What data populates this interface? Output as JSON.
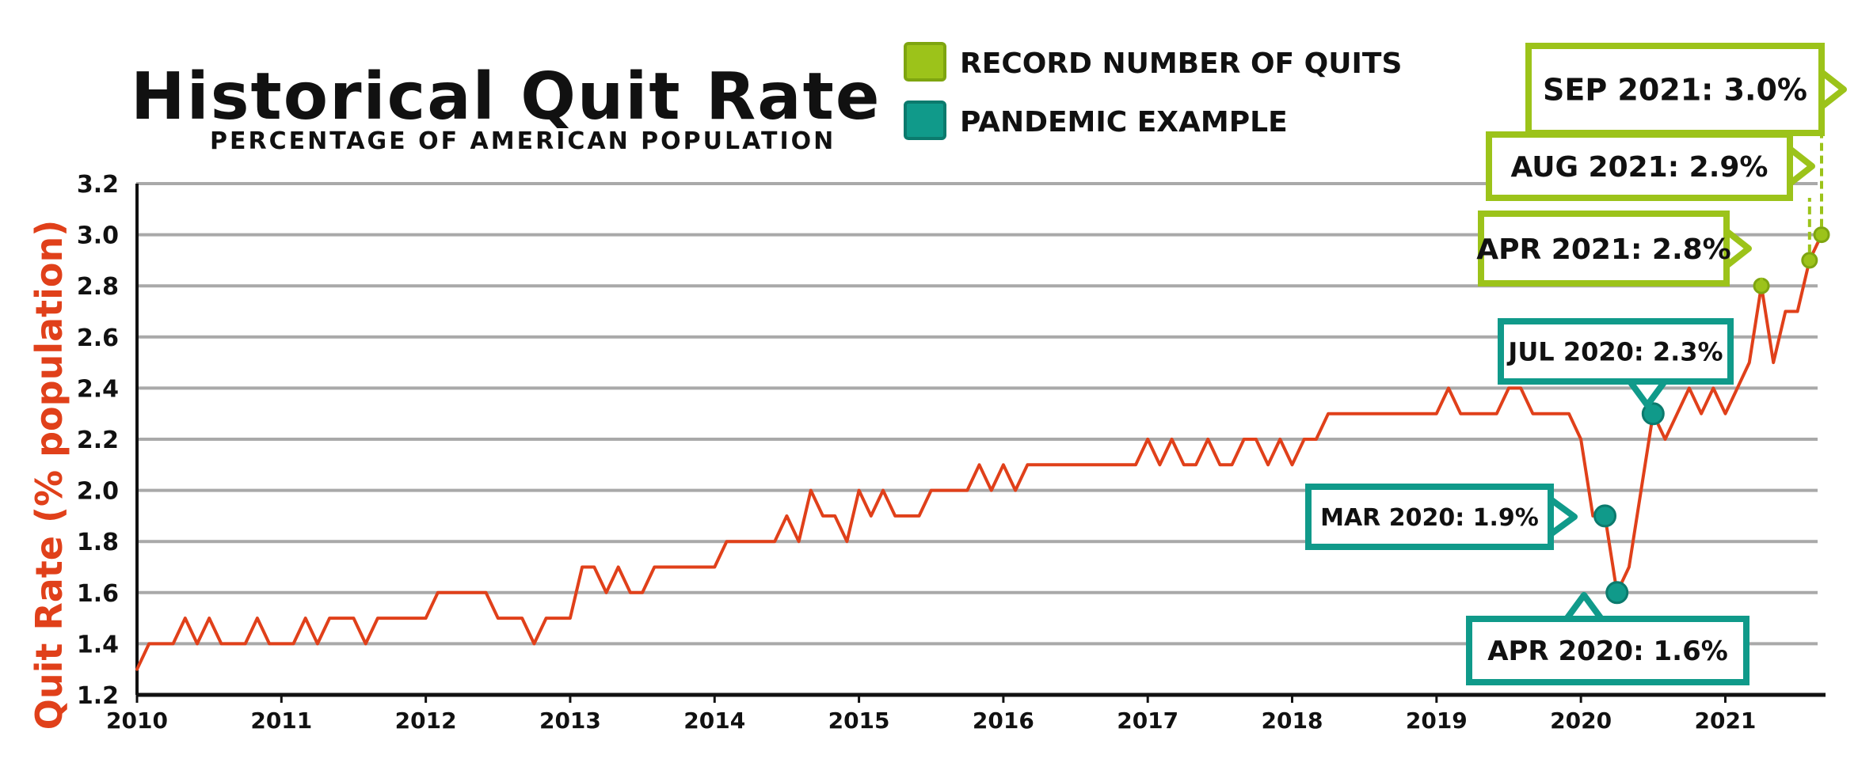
{
  "chart_data": {
    "type": "line",
    "title": "Historical Quit Rate",
    "subtitle": "percentage of American population",
    "ylabel": "Quit Rate (% population)",
    "xlabel": "",
    "ylim": [
      1.2,
      3.2
    ],
    "xlim": [
      "2010-01",
      "2021-09"
    ],
    "yticks": [
      "1.2",
      "1.4",
      "1.6",
      "1.8",
      "2.0",
      "2.2",
      "2.4",
      "2.6",
      "2.8",
      "3.0",
      "3.2"
    ],
    "xticks": [
      "2010",
      "2011",
      "2012",
      "2013",
      "2014",
      "2015",
      "2016",
      "2017",
      "2018",
      "2019",
      "2020",
      "2021"
    ],
    "grid": true,
    "legend_position": "top",
    "legend": [
      {
        "label": "RECORD NUMBER OF QUITS",
        "color": "#9cc31a"
      },
      {
        "label": "PANDEMIC EXAMPLE",
        "color": "#109a8a"
      }
    ],
    "series": [
      {
        "color": "#e0401a",
        "points": [
          [
            "2010-01",
            1.3
          ],
          [
            "2010-02",
            1.4
          ],
          [
            "2010-04",
            1.4
          ],
          [
            "2010-05",
            1.5
          ],
          [
            "2010-06",
            1.4
          ],
          [
            "2010-07",
            1.5
          ],
          [
            "2010-08",
            1.4
          ],
          [
            "2010-10",
            1.4
          ],
          [
            "2010-11",
            1.5
          ],
          [
            "2010-12",
            1.4
          ],
          [
            "2011-02",
            1.4
          ],
          [
            "2011-03",
            1.5
          ],
          [
            "2011-04",
            1.4
          ],
          [
            "2011-05",
            1.5
          ],
          [
            "2011-07",
            1.5
          ],
          [
            "2011-08",
            1.4
          ],
          [
            "2011-09",
            1.5
          ],
          [
            "2012-01",
            1.5
          ],
          [
            "2012-02",
            1.6
          ],
          [
            "2012-06",
            1.6
          ],
          [
            "2012-07",
            1.5
          ],
          [
            "2012-08",
            1.5
          ],
          [
            "2012-09",
            1.5
          ],
          [
            "2012-10",
            1.4
          ],
          [
            "2012-11",
            1.5
          ],
          [
            "2013-01",
            1.5
          ],
          [
            "2013-02",
            1.7
          ],
          [
            "2013-03",
            1.7
          ],
          [
            "2013-04",
            1.6
          ],
          [
            "2013-05",
            1.7
          ],
          [
            "2013-06",
            1.6
          ],
          [
            "2013-07",
            1.6
          ],
          [
            "2013-08",
            1.7
          ],
          [
            "2013-12",
            1.7
          ],
          [
            "2014-01",
            1.7
          ],
          [
            "2014-02",
            1.8
          ],
          [
            "2014-06",
            1.8
          ],
          [
            "2014-07",
            1.9
          ],
          [
            "2014-08",
            1.8
          ],
          [
            "2014-09",
            2.0
          ],
          [
            "2014-10",
            1.9
          ],
          [
            "2014-11",
            1.9
          ],
          [
            "2014-12",
            1.8
          ],
          [
            "2015-01",
            2.0
          ],
          [
            "2015-02",
            1.9
          ],
          [
            "2015-03",
            2.0
          ],
          [
            "2015-04",
            1.9
          ],
          [
            "2015-06",
            1.9
          ],
          [
            "2015-07",
            2.0
          ],
          [
            "2015-10",
            2.0
          ],
          [
            "2015-11",
            2.1
          ],
          [
            "2015-12",
            2.0
          ],
          [
            "2016-01",
            2.1
          ],
          [
            "2016-02",
            2.0
          ],
          [
            "2016-03",
            2.1
          ],
          [
            "2016-09",
            2.1
          ],
          [
            "2016-10",
            2.1
          ],
          [
            "2016-11",
            2.1
          ],
          [
            "2016-12",
            2.1
          ],
          [
            "2017-01",
            2.2
          ],
          [
            "2017-02",
            2.1
          ],
          [
            "2017-03",
            2.2
          ],
          [
            "2017-04",
            2.1
          ],
          [
            "2017-05",
            2.1
          ],
          [
            "2017-06",
            2.2
          ],
          [
            "2017-07",
            2.1
          ],
          [
            "2017-08",
            2.1
          ],
          [
            "2017-09",
            2.2
          ],
          [
            "2017-10",
            2.2
          ],
          [
            "2017-11",
            2.1
          ],
          [
            "2017-12",
            2.2
          ],
          [
            "2018-01",
            2.1
          ],
          [
            "2018-02",
            2.2
          ],
          [
            "2018-03",
            2.2
          ],
          [
            "2018-04",
            2.3
          ],
          [
            "2018-05",
            2.3
          ],
          [
            "2019-01",
            2.3
          ],
          [
            "2019-02",
            2.4
          ],
          [
            "2019-03",
            2.3
          ],
          [
            "2019-06",
            2.3
          ],
          [
            "2019-07",
            2.4
          ],
          [
            "2019-08",
            2.4
          ],
          [
            "2019-09",
            2.3
          ],
          [
            "2019-12",
            2.3
          ],
          [
            "2020-01",
            2.2
          ],
          [
            "2020-02",
            1.9
          ],
          [
            "2020-03",
            1.9
          ],
          [
            "2020-04",
            1.6
          ],
          [
            "2020-05",
            1.7
          ],
          [
            "2020-06",
            2.0
          ],
          [
            "2020-07",
            2.3
          ],
          [
            "2020-08",
            2.2
          ],
          [
            "2020-09",
            2.3
          ],
          [
            "2020-10",
            2.4
          ],
          [
            "2020-11",
            2.3
          ],
          [
            "2020-12",
            2.4
          ],
          [
            "2021-01",
            2.3
          ],
          [
            "2021-02",
            2.4
          ],
          [
            "2021-03",
            2.5
          ],
          [
            "2021-04",
            2.8
          ],
          [
            "2021-05",
            2.5
          ],
          [
            "2021-06",
            2.7
          ],
          [
            "2021-07",
            2.7
          ],
          [
            "2021-08",
            2.9
          ],
          [
            "2021-09",
            3.0
          ]
        ]
      }
    ],
    "annotations": [
      {
        "x": "2021-09",
        "y": 3.0,
        "text": "SEP 2021: 3.0%",
        "group": "record",
        "box_color": "#9cc31a"
      },
      {
        "x": "2021-08",
        "y": 2.9,
        "text": "AUG 2021: 2.9%",
        "group": "record",
        "box_color": "#9cc31a"
      },
      {
        "x": "2021-04",
        "y": 2.8,
        "text": "APR 2021: 2.8%",
        "group": "record",
        "box_color": "#9cc31a"
      },
      {
        "x": "2020-07",
        "y": 2.3,
        "text": "JUL 2020: 2.3%",
        "group": "pandemic",
        "box_color": "#109a8a"
      },
      {
        "x": "2020-03",
        "y": 1.9,
        "text": "MAR 2020: 1.9%",
        "group": "pandemic",
        "box_color": "#109a8a"
      },
      {
        "x": "2020-04",
        "y": 1.6,
        "text": "APR 2020: 1.6%",
        "group": "pandemic",
        "box_color": "#109a8a"
      }
    ]
  }
}
